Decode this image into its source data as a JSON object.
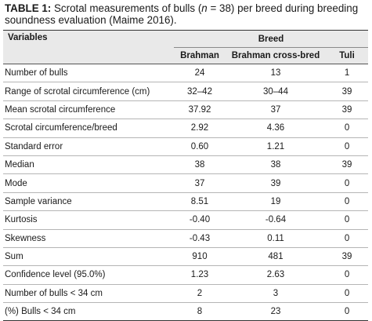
{
  "caption": {
    "label": "TABLE 1:",
    "text_before_n": " Scrotal measurements of bulls (",
    "n_symbol": "n",
    "text_after_n": " = 38) per breed during breeding soundness evaluation (Maime 2016)."
  },
  "table": {
    "variables_header": "Variables",
    "group_header": "Breed",
    "columns": [
      "Brahman",
      "Brahman cross-bred",
      "Tuli"
    ],
    "rows": [
      {
        "label": "Number of bulls",
        "values": [
          "24",
          "13",
          "1"
        ]
      },
      {
        "label": "Range of scrotal circumference (cm)",
        "values": [
          "32–42",
          "30–44",
          "39"
        ]
      },
      {
        "label": "Mean scrotal circumference",
        "values": [
          "37.92",
          "37",
          "39"
        ]
      },
      {
        "label": "Scrotal circumference/breed",
        "values": [
          "2.92",
          "4.36",
          "0"
        ]
      },
      {
        "label": "Standard error",
        "values": [
          "0.60",
          "1.21",
          "0"
        ]
      },
      {
        "label": "Median",
        "values": [
          "38",
          "38",
          "39"
        ]
      },
      {
        "label": "Mode",
        "values": [
          "37",
          "39",
          "0"
        ]
      },
      {
        "label": "Sample variance",
        "values": [
          "8.51",
          "19",
          "0"
        ]
      },
      {
        "label": "Kurtosis",
        "values": [
          "-0.40",
          "-0.64",
          "0"
        ]
      },
      {
        "label": "Skewness",
        "values": [
          "-0.43",
          "0.11",
          "0"
        ]
      },
      {
        "label": "Sum",
        "values": [
          "910",
          "481",
          "39"
        ]
      },
      {
        "label": "Confidence level (95.0%)",
        "values": [
          "1.23",
          "2.63",
          "0"
        ]
      },
      {
        "label": "Number of bulls < 34 cm",
        "values": [
          "2",
          "3",
          "0"
        ]
      },
      {
        "label": "(%) Bulls < 34 cm",
        "values": [
          "8",
          "23",
          "0"
        ]
      }
    ]
  }
}
